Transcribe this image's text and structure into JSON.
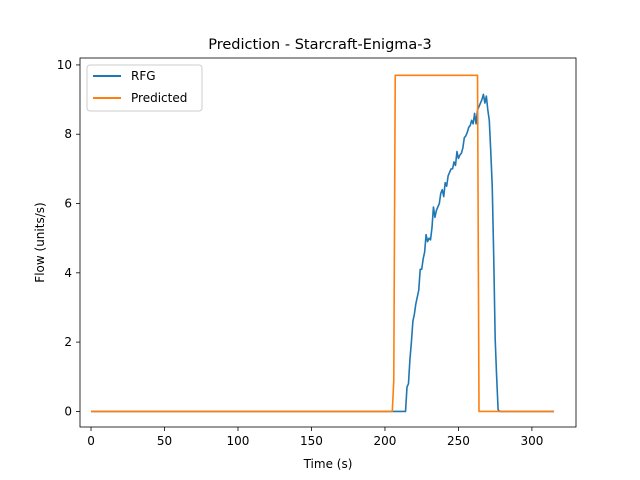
{
  "chart_data": {
    "type": "line",
    "title": "Prediction - Starcraft-Enigma-3",
    "xlabel": "Time (s)",
    "ylabel": "Flow (units/s)",
    "xlim": [
      -7.5,
      330
    ],
    "ylim": [
      -0.45,
      10.2
    ],
    "xticks": [
      0,
      50,
      100,
      150,
      200,
      250,
      300
    ],
    "yticks": [
      0,
      2,
      4,
      6,
      8,
      10
    ],
    "grid": false,
    "legend_position": "top-left",
    "series": [
      {
        "name": "RFG",
        "color": "#1f77b4",
        "points": [
          [
            0,
            0
          ],
          [
            100,
            0
          ],
          [
            200,
            0
          ],
          [
            214,
            0
          ],
          [
            215,
            0.7
          ],
          [
            216,
            0.8
          ],
          [
            217,
            1.5
          ],
          [
            218,
            2.0
          ],
          [
            219,
            2.6
          ],
          [
            220,
            2.8
          ],
          [
            221,
            3.1
          ],
          [
            222,
            3.3
          ],
          [
            223,
            3.5
          ],
          [
            224,
            4.1
          ],
          [
            225,
            4.1
          ],
          [
            226,
            4.4
          ],
          [
            227,
            4.6
          ],
          [
            228,
            5.1
          ],
          [
            229,
            4.9
          ],
          [
            230,
            5.0
          ],
          [
            231,
            4.95
          ],
          [
            232,
            5.3
          ],
          [
            233,
            5.9
          ],
          [
            234,
            5.6
          ],
          [
            235,
            5.8
          ],
          [
            236,
            5.9
          ],
          [
            237,
            6.0
          ],
          [
            238,
            6.3
          ],
          [
            239,
            6.4
          ],
          [
            240,
            6.2
          ],
          [
            241,
            6.6
          ],
          [
            242,
            6.5
          ],
          [
            243,
            6.8
          ],
          [
            244,
            6.9
          ],
          [
            245,
            7.0
          ],
          [
            246,
            7.0
          ],
          [
            247,
            7.2
          ],
          [
            248,
            7.1
          ],
          [
            249,
            7.5
          ],
          [
            250,
            7.3
          ],
          [
            251,
            7.4
          ],
          [
            252,
            7.45
          ],
          [
            253,
            7.6
          ],
          [
            254,
            7.9
          ],
          [
            255,
            7.95
          ],
          [
            256,
            8.05
          ],
          [
            257,
            8.2
          ],
          [
            258,
            8.25
          ],
          [
            259,
            8.4
          ],
          [
            260,
            8.3
          ],
          [
            261,
            8.6
          ],
          [
            262,
            8.3
          ],
          [
            263,
            8.7
          ],
          [
            264,
            8.8
          ],
          [
            265,
            8.9
          ],
          [
            266,
            9.0
          ],
          [
            267,
            9.15
          ],
          [
            268,
            8.9
          ],
          [
            269,
            9.1
          ],
          [
            270,
            8.7
          ],
          [
            271,
            8.4
          ],
          [
            272,
            7.5
          ],
          [
            273,
            6.5
          ],
          [
            274,
            4.5
          ],
          [
            275,
            2.1
          ],
          [
            276,
            1.0
          ],
          [
            277,
            0.05
          ],
          [
            278,
            0.0
          ],
          [
            300,
            0.0
          ],
          [
            315,
            0.0
          ]
        ]
      },
      {
        "name": "Predicted",
        "color": "#ff7f0e",
        "points": [
          [
            0,
            0
          ],
          [
            205,
            0
          ],
          [
            206,
            0.9
          ],
          [
            207,
            9.7
          ],
          [
            263,
            9.7
          ],
          [
            264,
            0
          ],
          [
            315,
            0
          ]
        ]
      }
    ]
  }
}
